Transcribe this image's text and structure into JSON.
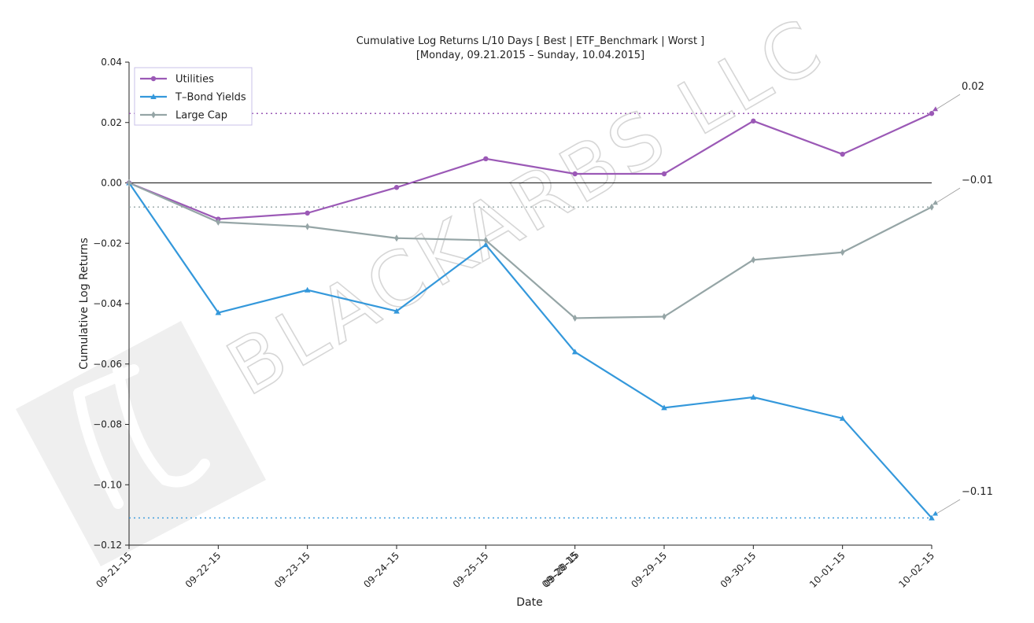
{
  "chart_data": {
    "type": "line",
    "title": "Cumulative Log Returns L/10 Days [ Best | ETF_Benchmark | Worst ]",
    "subtitle": "[Monday, 09.21.2015 – Sunday, 10.04.2015]",
    "xlabel": "Date",
    "ylabel": "Cumulative Log Returns",
    "categories": [
      "09–21–15",
      "09–22–15",
      "09–23–15",
      "09–24–15",
      "09–25–15",
      "09–28–15",
      "09–29–15",
      "09–30–15",
      "10–01–15",
      "10–02–15"
    ],
    "overlap_tick_label": "09–28–15",
    "ylim": [
      -0.12,
      0.04
    ],
    "yticks": [
      0.04,
      0.02,
      0.0,
      -0.02,
      -0.04,
      -0.06,
      -0.08,
      -0.1,
      -0.12
    ],
    "ytick_labels": [
      "0.04",
      "0.02",
      "0.00",
      "−0.02",
      "−0.04",
      "−0.06",
      "−0.08",
      "−0.10",
      "−0.12"
    ],
    "grid": false,
    "legend_position": "top-left",
    "series": [
      {
        "name": "Utilities",
        "color": "#9b59b6",
        "marker": "circle",
        "values": [
          0.0,
          -0.012,
          -0.01,
          -0.0015,
          0.008,
          0.003,
          0.003,
          0.0205,
          0.0095,
          0.023
        ]
      },
      {
        "name": "T–Bond Yields",
        "color": "#3498db",
        "marker": "triangle",
        "values": [
          0.0,
          -0.043,
          -0.0355,
          -0.0425,
          -0.0205,
          -0.056,
          -0.0745,
          -0.071,
          -0.078,
          -0.111
        ]
      },
      {
        "name": "Large Cap",
        "color": "#95a5a6",
        "marker": "diamond",
        "values": [
          0.0,
          -0.013,
          -0.0145,
          -0.0183,
          -0.019,
          -0.0448,
          -0.0443,
          -0.0255,
          -0.023,
          -0.008
        ]
      }
    ],
    "reference_lines": [
      {
        "value": 0.023,
        "color": "#9b59b6"
      },
      {
        "value": -0.008,
        "color": "#95a5a6"
      },
      {
        "value": -0.111,
        "color": "#3498db"
      }
    ],
    "end_annotations": [
      {
        "label": "0.02",
        "value": 0.023,
        "color": "#9b59b6"
      },
      {
        "label": "−0.01",
        "value": -0.008,
        "color": "#95a5a6"
      },
      {
        "label": "−0.11",
        "value": -0.111,
        "color": "#3498db"
      }
    ],
    "zero_line": true
  },
  "watermark": {
    "text": "BLACKARBS LLC",
    "logo_symbol": "π"
  }
}
